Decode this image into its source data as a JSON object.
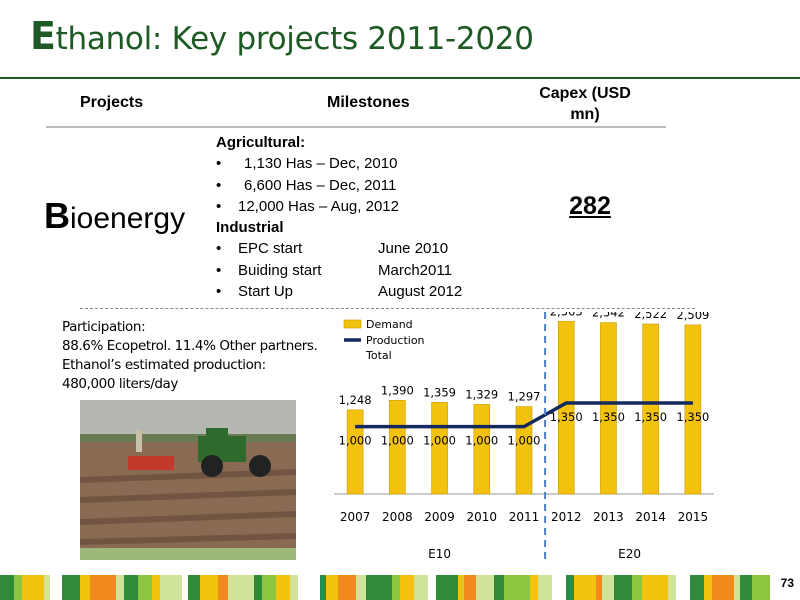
{
  "title": {
    "initial": "E",
    "rest": "thanol: Key projects 2011-2020"
  },
  "table": {
    "headers": {
      "projects": "Projects",
      "milestones": "Milestones",
      "capex": "Capex (USD mn)"
    },
    "project": {
      "initial": "B",
      "rest": "ioenergy"
    },
    "capex_value": "282",
    "agricultural_title": "Agricultural:",
    "agricultural": [
      {
        "label": "1,130 Has – Dec, 2010"
      },
      {
        "label": "6,600 Has – Dec, 2011"
      },
      {
        "label": "12,000 Has – Aug, 2012"
      }
    ],
    "industrial_title": "Industrial",
    "industrial": [
      {
        "label": "EPC start",
        "date": "June 2010"
      },
      {
        "label": "Buiding start",
        "date": "March2011"
      },
      {
        "label": "Start Up",
        "date": "August 2012"
      }
    ]
  },
  "participation": {
    "line1": "Participation:",
    "line2": "88.6% Ecopetrol. 11.4% Other partners.",
    "line3": "Ethanol’s estimated production:",
    "line4": "480,000 liters/day"
  },
  "chart_data": {
    "type": "bar",
    "categories": [
      "2007",
      "2008",
      "2009",
      "2010",
      "2011",
      "2012",
      "2013",
      "2014",
      "2015"
    ],
    "series": [
      {
        "name": "Demand",
        "type": "bar",
        "values": [
          1248,
          1390,
          1359,
          1329,
          1297,
          2563,
          2542,
          2522,
          2509
        ],
        "labels": [
          "1,248",
          "1,390",
          "1,359",
          "1,329",
          "1,297",
          "2,563",
          "2,542",
          "2,522",
          "2,509"
        ]
      },
      {
        "name": "Production Total",
        "type": "line",
        "values": [
          1000,
          1000,
          1000,
          1000,
          1000,
          1350,
          1350,
          1350,
          1350
        ],
        "labels": [
          "1,000",
          "1,000",
          "1,000",
          "1,000",
          "1,000",
          "1,350",
          "1,350",
          "1,350",
          "1,350"
        ]
      }
    ],
    "legend_labels": [
      "Demand",
      "Production",
      "Total"
    ],
    "regions": [
      {
        "label": "E10",
        "from": "2007",
        "to": "2011"
      },
      {
        "label": "E20",
        "from": "2012",
        "to": "2015"
      }
    ],
    "divider_between": [
      "2011",
      "2012"
    ],
    "ylim": [
      0,
      2700
    ],
    "legend": "top-left",
    "grid": false,
    "colors": {
      "bar": "#f3c20f",
      "bar_edge": "#c99a00",
      "line": "#14295e",
      "divider": "#4a7ec8"
    }
  },
  "footer": {
    "page_number": "73",
    "colors": [
      "#2f8a3a",
      "#8fc63f",
      "#f3c20f",
      "#f08a1c",
      "#cfe39a",
      "#ffffff"
    ]
  },
  "photo": {
    "colors": {
      "sky": "#b4b8b0",
      "trees": "#6a7a55",
      "field": "#8a6a52",
      "soil_dark": "#5e4536",
      "grass": "#9db87a",
      "tractor": "#2d6a2c",
      "planter": "#c23a2a"
    }
  }
}
